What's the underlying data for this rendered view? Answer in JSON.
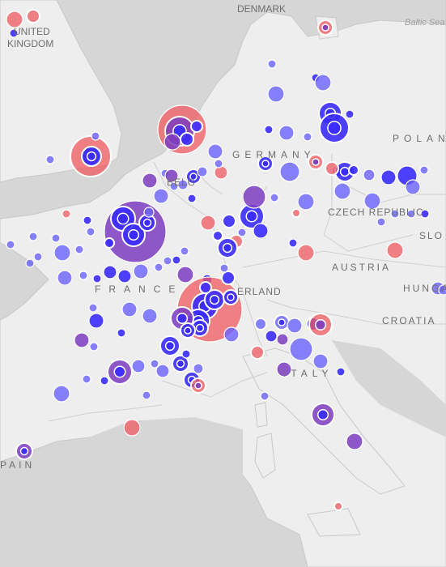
{
  "map": {
    "colors": {
      "sea": "#d6d6d6",
      "land": "#eeeeee",
      "border": "#c8c8c8",
      "marker_red": "#ef5a5f",
      "marker_blue": "#3a2bff",
      "marker_violet": "#7d3cbf",
      "marker_lightblue": "#6c63ff"
    },
    "labels": [
      {
        "id": "denmark",
        "text": "DENMARK"
      },
      {
        "id": "united",
        "text": "UNITED"
      },
      {
        "id": "kingdom",
        "text": "KINGDOM"
      },
      {
        "id": "baltic",
        "text": "Baltic Sea"
      },
      {
        "id": "poland",
        "text": "POLAND"
      },
      {
        "id": "germany",
        "text": "GERMANY"
      },
      {
        "id": "belgium",
        "text": "BELG"
      },
      {
        "id": "czech",
        "text": "CZECH REPUBLIC"
      },
      {
        "id": "slovakia",
        "text": "SLO"
      },
      {
        "id": "austria",
        "text": "AUSTRIA"
      },
      {
        "id": "hungary",
        "text": "HUNGA"
      },
      {
        "id": "france",
        "text": "FRANCE"
      },
      {
        "id": "switzerland",
        "text": "ERLAND"
      },
      {
        "id": "croatia",
        "text": "CROATIA"
      },
      {
        "id": "italy",
        "text": "ITALY"
      },
      {
        "id": "spain",
        "text": "PAIN"
      }
    ]
  }
}
